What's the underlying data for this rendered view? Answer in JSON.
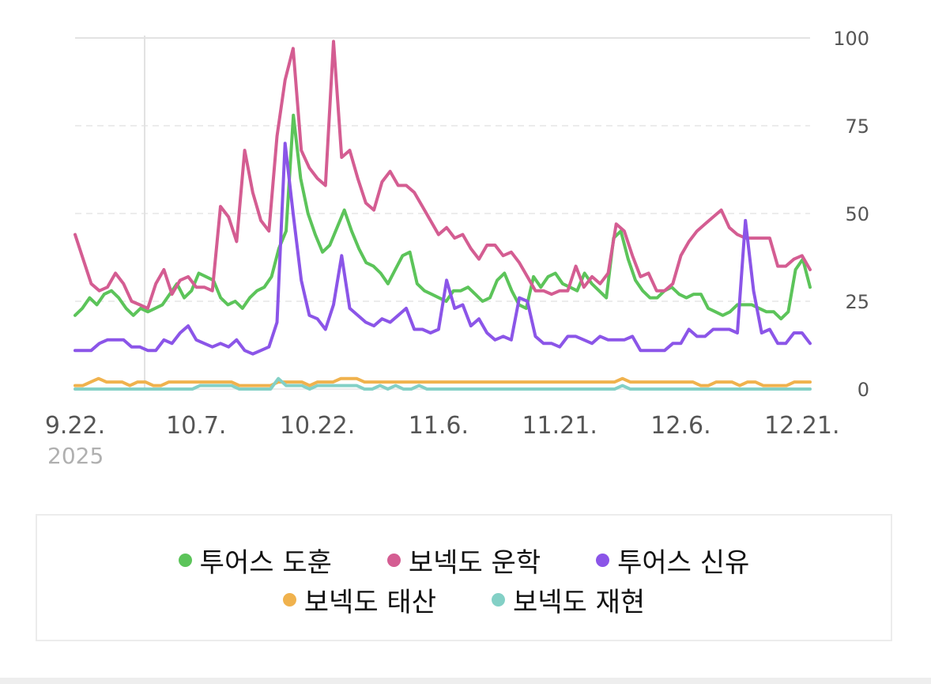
{
  "chart_data": {
    "type": "line",
    "ylim": [
      0,
      100
    ],
    "y_ticks": [
      "100",
      "75",
      "50",
      "25",
      "0"
    ],
    "x_tick_labels": [
      "9.22.",
      "10.7.",
      "10.22.",
      "11.6.",
      "11.21.",
      "12.6.",
      "12.21."
    ],
    "x_year_label": "2025",
    "grid": "horizontal dashed",
    "legend_position": "bottom",
    "x_start": "2025-09-22",
    "x_end": "2025-12-22",
    "series": [
      {
        "name": "투어스 도훈",
        "color": "#5cc45a",
        "values": [
          21,
          23,
          26,
          24,
          27,
          28,
          26,
          23,
          21,
          23,
          22,
          23,
          24,
          27,
          30,
          26,
          28,
          33,
          32,
          31,
          26,
          24,
          25,
          23,
          26,
          28,
          29,
          32,
          40,
          45,
          78,
          60,
          50,
          44,
          39,
          41,
          46,
          51,
          45,
          40,
          36,
          35,
          33,
          30,
          34,
          38,
          39,
          30,
          28,
          27,
          26,
          25,
          28,
          28,
          29,
          27,
          25,
          26,
          31,
          33,
          28,
          24,
          23,
          32,
          29,
          32,
          33,
          30,
          29,
          28,
          33,
          30,
          28,
          26,
          43,
          45,
          37,
          31,
          28,
          26,
          26,
          28,
          29,
          27,
          26,
          27,
          27,
          23,
          22,
          21,
          22,
          24,
          24,
          24,
          23,
          22,
          22,
          20,
          22,
          34,
          37,
          29
        ]
      },
      {
        "name": "보넥도 운학",
        "color": "#d45d92",
        "values": [
          44,
          37,
          30,
          28,
          29,
          33,
          30,
          25,
          24,
          23,
          30,
          34,
          27,
          31,
          32,
          29,
          29,
          28,
          52,
          49,
          42,
          68,
          56,
          48,
          45,
          72,
          88,
          97,
          68,
          63,
          60,
          58,
          99,
          66,
          68,
          60,
          53,
          51,
          59,
          62,
          58,
          58,
          56,
          52,
          48,
          44,
          46,
          43,
          44,
          40,
          37,
          41,
          41,
          38,
          39,
          36,
          32,
          28,
          28,
          27,
          28,
          28,
          35,
          29,
          32,
          30,
          33,
          47,
          45,
          38,
          32,
          33,
          28,
          28,
          30,
          38,
          42,
          45,
          47,
          49,
          51,
          46,
          44,
          43,
          43,
          43,
          43,
          35,
          35,
          37,
          38,
          34
        ]
      },
      {
        "name": "투어스 신유",
        "color": "#8b55e8",
        "values": [
          11,
          11,
          11,
          13,
          14,
          14,
          14,
          12,
          12,
          11,
          11,
          14,
          13,
          16,
          18,
          14,
          13,
          12,
          13,
          12,
          14,
          11,
          10,
          11,
          12,
          19,
          70,
          50,
          31,
          21,
          20,
          17,
          24,
          38,
          23,
          21,
          19,
          18,
          20,
          19,
          21,
          23,
          17,
          17,
          16,
          17,
          31,
          23,
          24,
          18,
          20,
          16,
          14,
          15,
          14,
          26,
          25,
          15,
          13,
          13,
          12,
          15,
          15,
          14,
          13,
          15,
          14,
          14,
          14,
          15,
          11,
          11,
          11,
          11,
          13,
          13,
          17,
          15,
          15,
          17,
          17,
          17,
          16,
          48,
          28,
          16,
          17,
          13,
          13,
          16,
          16,
          13
        ]
      },
      {
        "name": "보넥도 태산",
        "color": "#f0b24d",
        "values": [
          1,
          1,
          2,
          3,
          2,
          2,
          2,
          1,
          2,
          2,
          1,
          1,
          2,
          2,
          2,
          2,
          2,
          2,
          2,
          2,
          2,
          1,
          1,
          1,
          1,
          1,
          2,
          2,
          2,
          2,
          1,
          2,
          2,
          2,
          3,
          3,
          3,
          2,
          2,
          2,
          2,
          2,
          2,
          2,
          2,
          2,
          2,
          2,
          2,
          2,
          2,
          2,
          2,
          2,
          2,
          2,
          2,
          2,
          2,
          2,
          2,
          2,
          2,
          2,
          2,
          2,
          2,
          2,
          2,
          2,
          3,
          2,
          2,
          2,
          2,
          2,
          2,
          2,
          2,
          2,
          1,
          1,
          2,
          2,
          2,
          1,
          2,
          2,
          1,
          1,
          1,
          1,
          2,
          2,
          2
        ]
      },
      {
        "name": "보넥도 재현",
        "color": "#83d0c6",
        "values": [
          0,
          0,
          0,
          0,
          0,
          0,
          0,
          0,
          0,
          0,
          0,
          0,
          0,
          0,
          0,
          0,
          1,
          1,
          1,
          1,
          1,
          0,
          0,
          0,
          0,
          0,
          3,
          1,
          1,
          1,
          0,
          1,
          1,
          1,
          1,
          1,
          1,
          0,
          0,
          1,
          0,
          1,
          0,
          0,
          1,
          0,
          0,
          0,
          0,
          0,
          0,
          0,
          0,
          0,
          0,
          0,
          0,
          0,
          0,
          0,
          0,
          0,
          0,
          0,
          0,
          0,
          0,
          0,
          0,
          0,
          1,
          0,
          0,
          0,
          0,
          0,
          0,
          0,
          0,
          0,
          0,
          0,
          0,
          0,
          0,
          0,
          0,
          0,
          0,
          0,
          0,
          0,
          0,
          0,
          0
        ]
      }
    ]
  }
}
